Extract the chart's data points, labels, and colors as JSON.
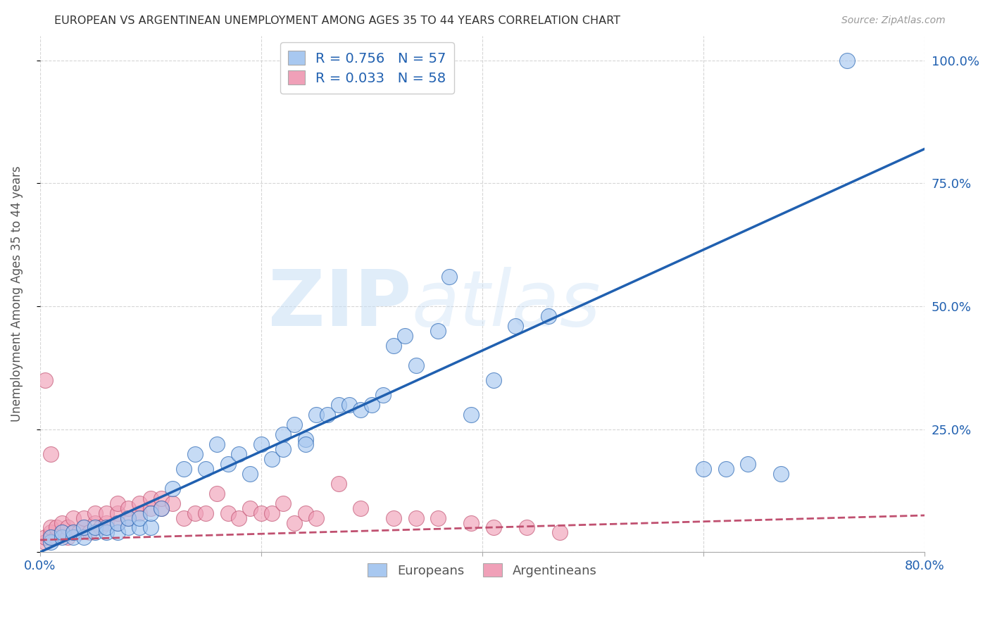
{
  "title": "EUROPEAN VS ARGENTINEAN UNEMPLOYMENT AMONG AGES 35 TO 44 YEARS CORRELATION CHART",
  "source": "Source: ZipAtlas.com",
  "ylabel": "Unemployment Among Ages 35 to 44 years",
  "xlim": [
    0.0,
    0.8
  ],
  "ylim": [
    0.0,
    1.05
  ],
  "xticks": [
    0.0,
    0.2,
    0.4,
    0.6,
    0.8
  ],
  "xticklabels": [
    "0.0%",
    "",
    "",
    "",
    "80.0%"
  ],
  "yticks": [
    0.0,
    0.25,
    0.5,
    0.75,
    1.0
  ],
  "yticklabels": [
    "",
    "25.0%",
    "50.0%",
    "75.0%",
    "100.0%"
  ],
  "european_color": "#a8c8f0",
  "argentinean_color": "#f0a0b8",
  "european_line_color": "#2060b0",
  "argentinean_line_color": "#c05070",
  "R_european": 0.756,
  "N_european": 57,
  "R_argentinean": 0.033,
  "N_argentinean": 58,
  "watermark": "ZIPatlas",
  "background_color": "#ffffff",
  "grid_color": "#cccccc",
  "legend_text_color": "#2060b0",
  "eu_line_x0": 0.0,
  "eu_line_y0": 0.0,
  "eu_line_x1": 0.8,
  "eu_line_y1": 0.82,
  "ar_line_x0": 0.0,
  "ar_line_y0": 0.025,
  "ar_line_x1": 0.8,
  "ar_line_y1": 0.075,
  "european_scatter_x": [
    0.01,
    0.01,
    0.02,
    0.02,
    0.03,
    0.03,
    0.04,
    0.04,
    0.05,
    0.05,
    0.06,
    0.06,
    0.07,
    0.07,
    0.08,
    0.08,
    0.09,
    0.09,
    0.1,
    0.1,
    0.11,
    0.12,
    0.13,
    0.14,
    0.15,
    0.16,
    0.17,
    0.18,
    0.19,
    0.2,
    0.21,
    0.22,
    0.22,
    0.23,
    0.24,
    0.24,
    0.25,
    0.26,
    0.27,
    0.28,
    0.29,
    0.3,
    0.31,
    0.32,
    0.33,
    0.34,
    0.36,
    0.37,
    0.39,
    0.41,
    0.43,
    0.46,
    0.6,
    0.62,
    0.64,
    0.67,
    0.73
  ],
  "european_scatter_y": [
    0.02,
    0.03,
    0.03,
    0.04,
    0.03,
    0.04,
    0.03,
    0.05,
    0.04,
    0.05,
    0.04,
    0.05,
    0.04,
    0.06,
    0.05,
    0.07,
    0.05,
    0.07,
    0.05,
    0.08,
    0.09,
    0.13,
    0.17,
    0.2,
    0.17,
    0.22,
    0.18,
    0.2,
    0.16,
    0.22,
    0.19,
    0.24,
    0.21,
    0.26,
    0.23,
    0.22,
    0.28,
    0.28,
    0.3,
    0.3,
    0.29,
    0.3,
    0.32,
    0.42,
    0.44,
    0.38,
    0.45,
    0.56,
    0.28,
    0.35,
    0.46,
    0.48,
    0.17,
    0.17,
    0.18,
    0.16,
    1.0
  ],
  "argentinean_scatter_x": [
    0.005,
    0.005,
    0.01,
    0.01,
    0.01,
    0.015,
    0.015,
    0.02,
    0.02,
    0.025,
    0.025,
    0.03,
    0.03,
    0.035,
    0.04,
    0.04,
    0.045,
    0.05,
    0.05,
    0.055,
    0.06,
    0.06,
    0.07,
    0.07,
    0.07,
    0.08,
    0.08,
    0.09,
    0.09,
    0.1,
    0.1,
    0.11,
    0.11,
    0.12,
    0.13,
    0.14,
    0.15,
    0.16,
    0.17,
    0.18,
    0.19,
    0.2,
    0.21,
    0.22,
    0.23,
    0.24,
    0.25,
    0.27,
    0.29,
    0.32,
    0.34,
    0.36,
    0.39,
    0.41,
    0.44,
    0.47,
    0.005,
    0.01
  ],
  "argentinean_scatter_y": [
    0.02,
    0.03,
    0.03,
    0.04,
    0.05,
    0.03,
    0.05,
    0.04,
    0.06,
    0.03,
    0.05,
    0.04,
    0.07,
    0.04,
    0.05,
    0.07,
    0.04,
    0.06,
    0.08,
    0.05,
    0.06,
    0.08,
    0.06,
    0.08,
    0.1,
    0.07,
    0.09,
    0.08,
    0.1,
    0.09,
    0.11,
    0.09,
    0.11,
    0.1,
    0.07,
    0.08,
    0.08,
    0.12,
    0.08,
    0.07,
    0.09,
    0.08,
    0.08,
    0.1,
    0.06,
    0.08,
    0.07,
    0.14,
    0.09,
    0.07,
    0.07,
    0.07,
    0.06,
    0.05,
    0.05,
    0.04,
    0.35,
    0.2
  ]
}
